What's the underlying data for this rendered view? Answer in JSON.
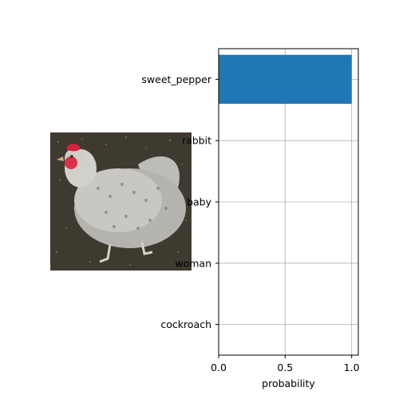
{
  "chart_data": {
    "type": "bar",
    "orientation": "horizontal",
    "categories": [
      "sweet_pepper",
      "rabbit",
      "baby",
      "woman",
      "cockroach"
    ],
    "values": [
      1.0,
      0.0,
      0.0,
      0.0,
      0.0
    ],
    "xlabel": "probability",
    "ylabel": "",
    "xlim": [
      0,
      1.05
    ],
    "xticks": [
      0.0,
      0.5,
      1.0
    ],
    "xtick_labels": [
      "0.0",
      "0.5",
      "1.0"
    ],
    "grid": true,
    "bar_color": "#1f77b4"
  },
  "image": {
    "subject": "chicken photo"
  }
}
